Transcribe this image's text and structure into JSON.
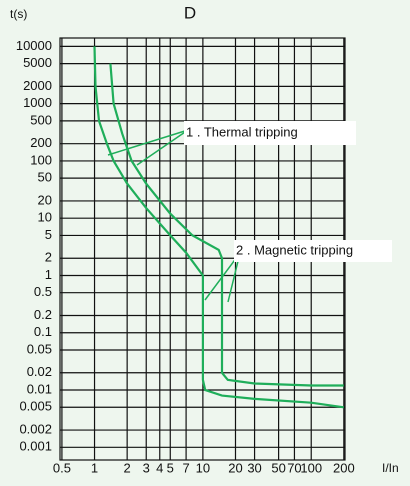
{
  "chart_data": {
    "type": "line",
    "title": "D",
    "y_label": "t(s)",
    "x_label": "I/In",
    "x_scale": "log",
    "y_scale": "log",
    "grid": true,
    "xlim": [
      0.48,
      205
    ],
    "ylim": [
      0.0006,
      14000
    ],
    "xticks": [
      0.5,
      1,
      2,
      3,
      4,
      5,
      7,
      10,
      20,
      30,
      50,
      70,
      100,
      200
    ],
    "yticks": [
      10000,
      5000,
      2000,
      1000,
      500,
      200,
      100,
      50,
      20,
      10,
      5,
      2,
      1,
      0.5,
      0.2,
      0.1,
      0.05,
      0.02,
      0.01,
      0.005,
      0.002,
      0.001
    ],
    "series": [
      {
        "color": "#1fae5a",
        "x": [
          1,
          1.02,
          1.1,
          1.3,
          1.5,
          2,
          3,
          5,
          7,
          10,
          10,
          10.5,
          15,
          30,
          100,
          200
        ],
        "values": [
          10000,
          2000,
          500,
          200,
          100,
          40,
          15,
          5,
          2.5,
          1,
          0.015,
          0.01,
          0.008,
          0.007,
          0.006,
          0.005
        ]
      },
      {
        "color": "#1fae5a",
        "x": [
          1.4,
          1.5,
          1.8,
          2.2,
          3,
          5,
          8,
          14,
          15,
          15,
          17,
          30,
          100,
          200
        ],
        "values": [
          5000,
          1000,
          300,
          100,
          40,
          12,
          5,
          2.8,
          2,
          0.02,
          0.015,
          0.013,
          0.012,
          0.012
        ]
      }
    ],
    "annotations": [
      {
        "text": "1 . Thermal tripping"
      },
      {
        "text": "2 . Magnetic tripping"
      }
    ]
  }
}
